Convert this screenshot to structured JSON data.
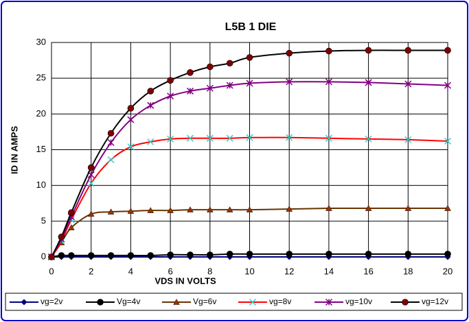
{
  "chart_data": {
    "type": "line",
    "title": "L5B 1 DIE",
    "x_label": "VDS IN VOLTS",
    "y_label": "ID IN AMPS",
    "x": [
      0,
      0.5,
      1,
      2,
      3,
      4,
      5,
      6,
      7,
      8,
      9,
      10,
      12,
      14,
      16,
      18,
      20
    ],
    "xlim": [
      0,
      20
    ],
    "xticks": [
      0,
      2,
      4,
      6,
      8,
      10,
      12,
      14,
      16,
      18,
      20
    ],
    "ylim": [
      0,
      30
    ],
    "yticks": [
      0,
      5,
      10,
      15,
      20,
      25,
      30
    ],
    "grid": true,
    "smooth": true,
    "legend": "bottom",
    "series": [
      {
        "name": "vg=2v",
        "color": "#000080",
        "marker_color": "#000080",
        "marker": "diamond",
        "values": [
          0,
          0,
          0,
          0,
          0,
          0,
          0,
          0,
          0,
          0,
          0,
          0,
          0,
          0,
          0,
          0,
          0
        ]
      },
      {
        "name": "Vg=4v",
        "color": "#000000",
        "marker_color": "#000000",
        "marker": "circle",
        "values": [
          0,
          0.2,
          0.2,
          0.2,
          0.2,
          0.2,
          0.2,
          0.3,
          0.3,
          0.3,
          0.4,
          0.4,
          0.4,
          0.4,
          0.4,
          0.4,
          0.4
        ]
      },
      {
        "name": "Vg=6v",
        "color": "#663300",
        "marker_color": "#993300",
        "marker": "triangle",
        "values": [
          0,
          2,
          4.1,
          6.0,
          6.3,
          6.4,
          6.5,
          6.5,
          6.6,
          6.6,
          6.6,
          6.6,
          6.7,
          6.8,
          6.8,
          6.8,
          6.8
        ]
      },
      {
        "name": "vg=8v",
        "color": "#ff0000",
        "marker_color": "#33cccc",
        "marker": "x",
        "values": [
          0,
          2.2,
          5.2,
          10.3,
          13.6,
          15.4,
          16.1,
          16.5,
          16.6,
          16.6,
          16.6,
          16.7,
          16.7,
          16.6,
          16.5,
          16.4,
          16.2
        ]
      },
      {
        "name": "vg=10v",
        "color": "#800080",
        "marker_color": "#800080",
        "marker": "star",
        "values": [
          0,
          2.5,
          5.6,
          11.5,
          16.0,
          19.2,
          21.2,
          22.5,
          23.2,
          23.6,
          24.0,
          24.3,
          24.5,
          24.5,
          24.4,
          24.2,
          24.0
        ]
      },
      {
        "name": "vg=12v",
        "color": "#000000",
        "marker_color": "#800000",
        "marker": "circle",
        "values": [
          0,
          2.8,
          6.2,
          12.5,
          17.3,
          20.8,
          23.2,
          24.7,
          25.8,
          26.6,
          27.1,
          27.9,
          28.5,
          28.8,
          28.9,
          28.9,
          28.9
        ]
      }
    ]
  }
}
